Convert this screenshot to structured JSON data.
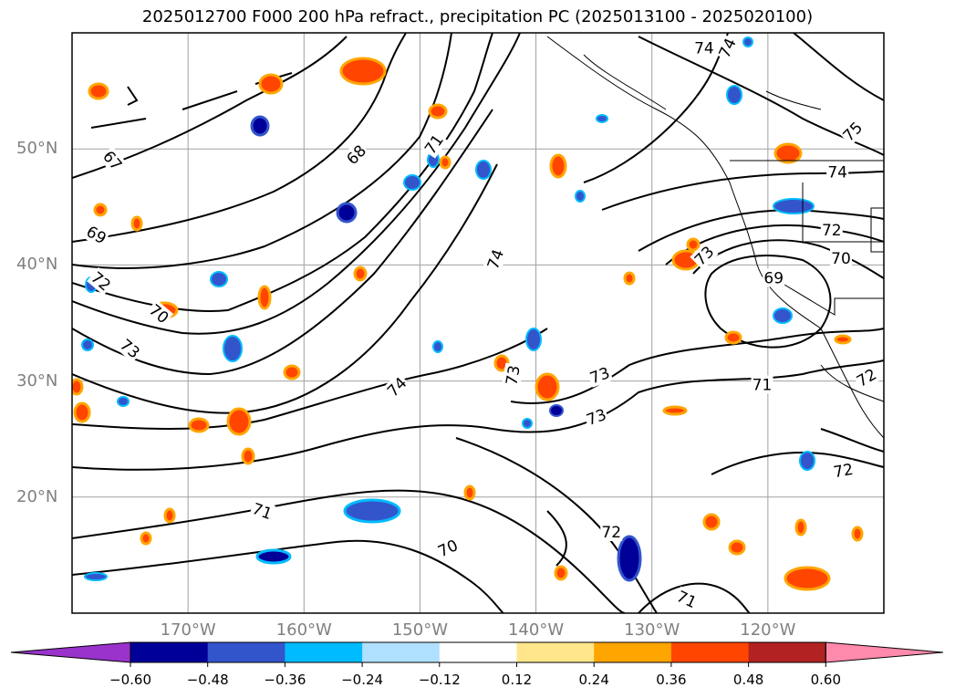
{
  "title": "2025012700 F000 200 hPa refract., precipitation PC (2025013100 - 2025020100)",
  "map": {
    "lon_range": [
      -180,
      -110
    ],
    "lat_range": [
      10,
      60
    ],
    "lat_labels": [
      {
        "lat": 50,
        "text": "50°N"
      },
      {
        "lat": 40,
        "text": "40°N"
      },
      {
        "lat": 30,
        "text": "30°N"
      },
      {
        "lat": 20,
        "text": "20°N"
      }
    ],
    "lon_labels": [
      {
        "lon": -170,
        "text": "170°W"
      },
      {
        "lon": -160,
        "text": "160°W"
      },
      {
        "lon": -150,
        "text": "150°W"
      },
      {
        "lon": -140,
        "text": "140°W"
      },
      {
        "lon": -130,
        "text": "130°W"
      },
      {
        "lon": -120,
        "text": "120°W"
      }
    ],
    "contour_labels": [
      {
        "text": "67",
        "lon": -176.5,
        "lat": 49.0,
        "rot": 50
      },
      {
        "text": "68",
        "lon": -155.5,
        "lat": 49.5,
        "rot": -45
      },
      {
        "text": "71",
        "lon": -148.8,
        "lat": 50.4,
        "rot": -55
      },
      {
        "text": "69",
        "lon": -177.9,
        "lat": 42.6,
        "rot": 30
      },
      {
        "text": "72",
        "lon": -177.5,
        "lat": 38.6,
        "rot": 40
      },
      {
        "text": "70",
        "lon": -172.5,
        "lat": 35.8,
        "rot": 40
      },
      {
        "text": "73",
        "lon": -175.0,
        "lat": 32.8,
        "rot": 40
      },
      {
        "text": "74",
        "lon": -143.5,
        "lat": 40.5,
        "rot": -70
      },
      {
        "text": "74",
        "lon": -152.0,
        "lat": 29.5,
        "rot": -45
      },
      {
        "text": "73",
        "lon": -142.0,
        "lat": 30.5,
        "rot": -80
      },
      {
        "text": "73",
        "lon": -134.5,
        "lat": 30.5,
        "rot": -20
      },
      {
        "text": "73",
        "lon": -134.8,
        "lat": 26.9,
        "rot": -20
      },
      {
        "text": "73",
        "lon": -125.5,
        "lat": 40.8,
        "rot": -45
      },
      {
        "text": "69",
        "lon": -119.5,
        "lat": 38.9,
        "rot": 0
      },
      {
        "text": "70",
        "lon": -113.7,
        "lat": 40.6,
        "rot": 0
      },
      {
        "text": "72",
        "lon": -114.5,
        "lat": 43.0,
        "rot": 0
      },
      {
        "text": "74",
        "lon": -114.0,
        "lat": 48.0,
        "rot": 0
      },
      {
        "text": "75",
        "lon": -112.7,
        "lat": 51.5,
        "rot": -45
      },
      {
        "text": "74",
        "lon": -125.5,
        "lat": 58.7,
        "rot": 0
      },
      {
        "text": "74",
        "lon": -123.5,
        "lat": 58.7,
        "rot": -65
      },
      {
        "text": "71",
        "lon": -120.5,
        "lat": 29.7,
        "rot": 0
      },
      {
        "text": "72",
        "lon": -111.5,
        "lat": 30.3,
        "rot": -30
      },
      {
        "text": "72",
        "lon": -113.5,
        "lat": 22.3,
        "rot": -10
      },
      {
        "text": "71",
        "lon": -163.6,
        "lat": 18.8,
        "rot": 20
      },
      {
        "text": "70",
        "lon": -147.6,
        "lat": 15.6,
        "rot": -25
      },
      {
        "text": "72",
        "lon": -133.5,
        "lat": 17.0,
        "rot": 0
      },
      {
        "text": "71",
        "lon": -127.0,
        "lat": 11.2,
        "rot": 25
      }
    ]
  },
  "colorbar": {
    "colors": [
      "#9933cc",
      "#000099",
      "#3355cc",
      "#00bbff",
      "#b0e0ff",
      "#ffffff",
      "#ffe68a",
      "#ffa500",
      "#ff4500",
      "#b22222",
      "#ff8aac"
    ],
    "ticks": [
      "−0.60",
      "−0.48",
      "−0.36",
      "−0.24",
      "−0.12",
      "0.12",
      "0.24",
      "0.36",
      "0.48",
      "0.60"
    ]
  }
}
